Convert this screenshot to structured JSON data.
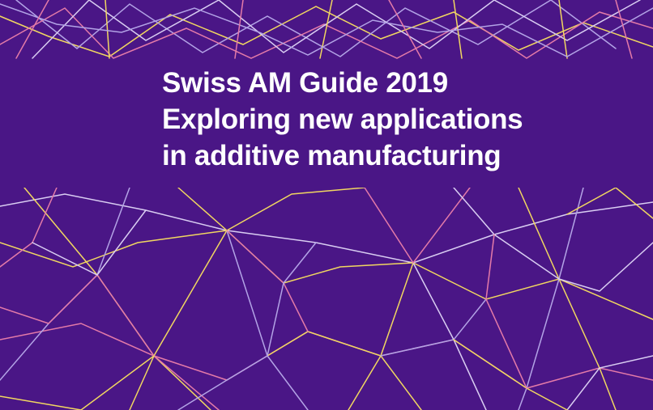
{
  "title": {
    "lines": [
      "Swiss AM Guide 2019",
      "Exploring new applications",
      "in additive manufacturing"
    ]
  },
  "colors": {
    "background": "#4a1686",
    "line_yellow": "#f1d760",
    "line_pink": "#e47aa8",
    "line_lavender": "#b3a3e6",
    "line_white": "#d9cdf2",
    "text": "#ffffff"
  }
}
